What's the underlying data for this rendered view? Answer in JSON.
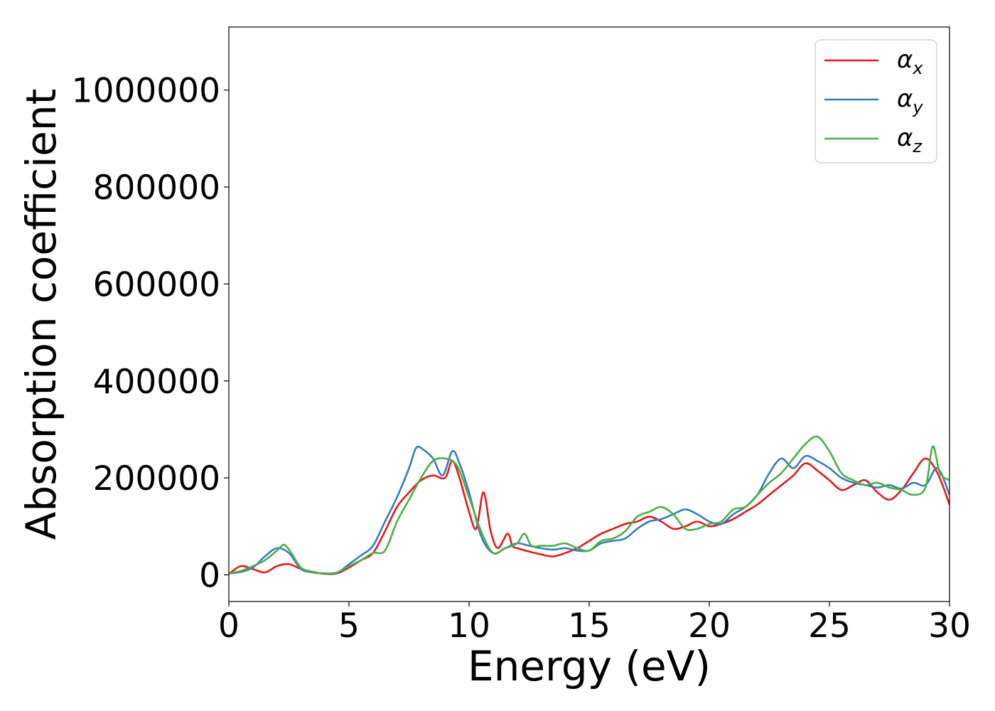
{
  "chart_data": {
    "type": "line",
    "title": "",
    "xlabel": "Energy (eV)",
    "ylabel": "Absorption coefficient",
    "xlim": [
      0,
      30
    ],
    "ylim": [
      -55000,
      1130000
    ],
    "xticks": [
      0,
      5,
      10,
      15,
      20,
      25,
      30
    ],
    "yticks": [
      0,
      200000,
      400000,
      600000,
      800000,
      1000000
    ],
    "xtick_labels": [
      "0",
      "5",
      "10",
      "15",
      "20",
      "25",
      "30"
    ],
    "ytick_labels": [
      "0",
      "200000",
      "400000",
      "600000",
      "800000",
      "1000000"
    ],
    "grid": false,
    "legend_position": "top-right",
    "series": [
      {
        "name": "α",
        "subscript": "x",
        "color": "#e41a1c",
        "x": [
          0,
          0.5,
          1,
          1.5,
          2,
          2.5,
          3,
          3.5,
          4,
          4.5,
          5,
          5.5,
          6,
          6.5,
          7,
          7.5,
          8,
          8.5,
          9,
          9.3,
          9.6,
          10,
          10.3,
          10.6,
          10.9,
          11.2,
          11.6,
          11.8,
          12,
          12.5,
          13,
          13.5,
          14,
          14.5,
          15,
          15.5,
          16,
          16.5,
          17,
          17.5,
          18,
          18.5,
          19,
          19.5,
          20,
          20.5,
          21,
          21.5,
          22,
          22.5,
          23,
          23.5,
          24,
          24.5,
          25,
          25.5,
          26,
          26.5,
          27,
          27.5,
          28,
          28.5,
          29,
          29.5,
          30
        ],
        "y": [
          2000,
          18000,
          12000,
          5000,
          18000,
          22000,
          12000,
          6000,
          2000,
          3000,
          15000,
          30000,
          45000,
          90000,
          140000,
          170000,
          195000,
          205000,
          200000,
          235000,
          200000,
          130000,
          95000,
          170000,
          90000,
          55000,
          85000,
          60000,
          55000,
          48000,
          42000,
          38000,
          45000,
          55000,
          70000,
          85000,
          95000,
          105000,
          110000,
          120000,
          110000,
          95000,
          100000,
          110000,
          100000,
          105000,
          115000,
          130000,
          145000,
          165000,
          185000,
          205000,
          230000,
          215000,
          195000,
          175000,
          185000,
          195000,
          170000,
          155000,
          175000,
          210000,
          240000,
          210000,
          145000
        ]
      },
      {
        "name": "α",
        "subscript": "y",
        "color": "#377eb8",
        "x": [
          0,
          0.5,
          1,
          1.5,
          2,
          2.5,
          3,
          3.5,
          4,
          4.5,
          5,
          5.5,
          6,
          6.5,
          7,
          7.5,
          7.8,
          8.1,
          8.5,
          8.9,
          9.3,
          9.6,
          10,
          10.5,
          11,
          11.5,
          12,
          12.5,
          13,
          13.5,
          14,
          14.5,
          15,
          15.5,
          16,
          16.5,
          17,
          17.5,
          18,
          18.5,
          19,
          19.5,
          20,
          20.5,
          21,
          21.5,
          22,
          22.5,
          23,
          23.5,
          24,
          24.5,
          25,
          25.5,
          26,
          26.5,
          27,
          27.5,
          28,
          28.5,
          29,
          29.5,
          30
        ],
        "y": [
          3000,
          6000,
          15000,
          38000,
          55000,
          45000,
          12000,
          5000,
          3000,
          4000,
          22000,
          40000,
          60000,
          110000,
          160000,
          220000,
          262000,
          258000,
          240000,
          205000,
          255000,
          230000,
          170000,
          80000,
          45000,
          55000,
          65000,
          60000,
          55000,
          52000,
          55000,
          50000,
          50000,
          65000,
          70000,
          75000,
          95000,
          110000,
          115000,
          125000,
          135000,
          125000,
          110000,
          105000,
          125000,
          140000,
          165000,
          210000,
          240000,
          220000,
          245000,
          235000,
          220000,
          200000,
          190000,
          185000,
          180000,
          185000,
          178000,
          190000,
          185000,
          220000,
          165000
        ]
      },
      {
        "name": "α",
        "subscript": "z",
        "color": "#4daf4a",
        "x": [
          0,
          0.5,
          1,
          1.5,
          2,
          2.3,
          2.6,
          3,
          3.5,
          4,
          4.5,
          5,
          5.5,
          6,
          6.5,
          7,
          7.5,
          8,
          8.5,
          9,
          9.5,
          10,
          10.5,
          11,
          11.5,
          12,
          12.3,
          12.6,
          13,
          13.5,
          14,
          14.5,
          15,
          15.5,
          16,
          16.5,
          17,
          17.5,
          18,
          18.5,
          19,
          19.5,
          20,
          20.5,
          21,
          21.5,
          22,
          22.5,
          23,
          23.5,
          24,
          24.5,
          25,
          25.5,
          26,
          26.5,
          27,
          27.5,
          28,
          28.5,
          29,
          29.3,
          29.6,
          30
        ],
        "y": [
          3000,
          8000,
          18000,
          30000,
          50000,
          62000,
          45000,
          15000,
          5000,
          3000,
          5000,
          18000,
          30000,
          45000,
          50000,
          110000,
          155000,
          200000,
          235000,
          240000,
          225000,
          160000,
          90000,
          45000,
          55000,
          65000,
          85000,
          60000,
          60000,
          60000,
          65000,
          55000,
          50000,
          70000,
          75000,
          90000,
          120000,
          130000,
          140000,
          125000,
          95000,
          95000,
          105000,
          110000,
          135000,
          140000,
          165000,
          190000,
          210000,
          240000,
          270000,
          285000,
          255000,
          210000,
          195000,
          185000,
          190000,
          180000,
          175000,
          165000,
          180000,
          265000,
          210000,
          195000
        ]
      }
    ]
  }
}
